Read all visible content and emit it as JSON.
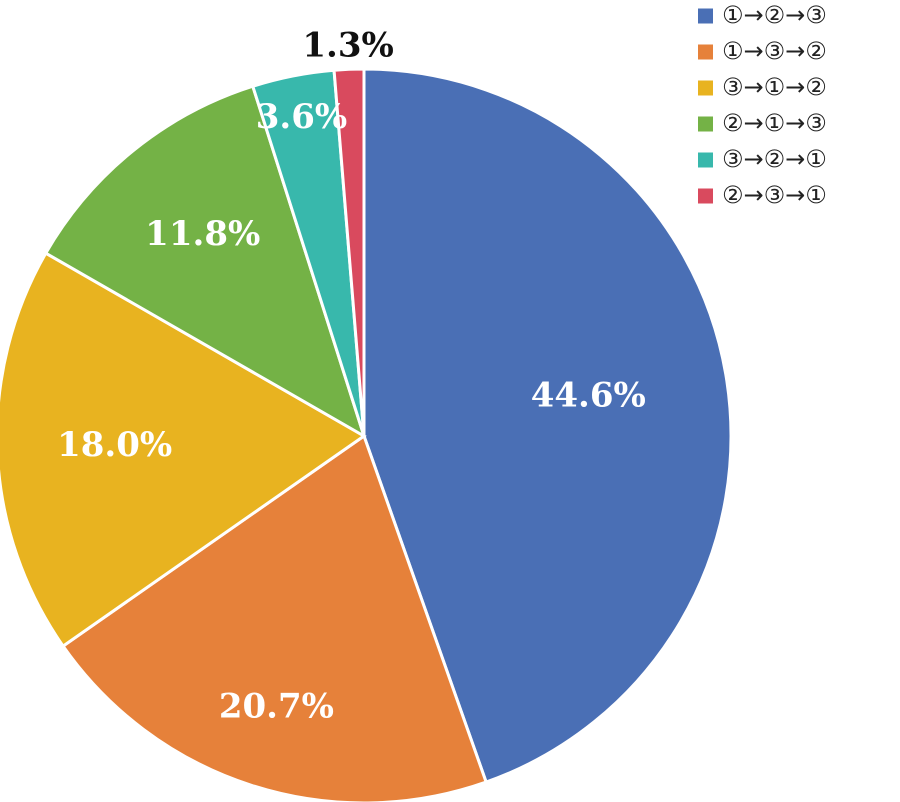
{
  "chart_data": {
    "type": "pie",
    "title": "",
    "legend_placement": "top-right",
    "slices": [
      {
        "label": "①→②→③",
        "value": 44.6,
        "display": "44.6%",
        "color": "#4a6fb5",
        "label_color": "#ffffff"
      },
      {
        "label": "①→③→②",
        "value": 20.7,
        "display": "20.7%",
        "color": "#e6813a",
        "label_color": "#ffffff"
      },
      {
        "label": "③→①→②",
        "value": 18.0,
        "display": "18.0%",
        "color": "#e8b320",
        "label_color": "#ffffff"
      },
      {
        "label": "②→①→③",
        "value": 11.8,
        "display": "11.8%",
        "color": "#74b246",
        "label_color": "#ffffff"
      },
      {
        "label": "③→②→①",
        "value": 3.6,
        "display": "3.6%",
        "color": "#38b8ac",
        "label_color": "#ffffff"
      },
      {
        "label": "②→③→①",
        "value": 1.3,
        "display": "1.3%",
        "color": "#d94a5e",
        "label_color": "#111111"
      }
    ]
  }
}
